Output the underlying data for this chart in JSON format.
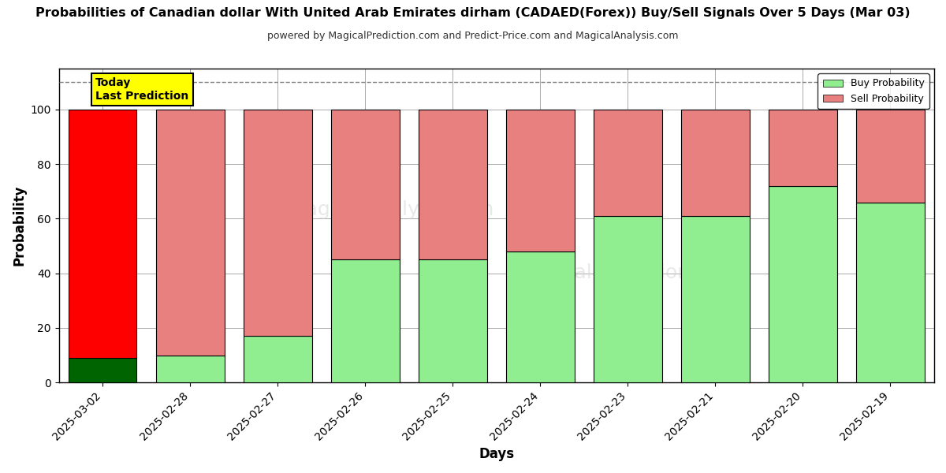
{
  "title": "Probabilities of Canadian dollar With United Arab Emirates dirham (CADAED(Forex)) Buy/Sell Signals Over 5 Days (Mar 03)",
  "subtitle": "powered by MagicalPrediction.com and Predict-Price.com and MagicalAnalysis.com",
  "xlabel": "Days",
  "ylabel": "Probability",
  "categories": [
    "2025-03-02",
    "2025-02-28",
    "2025-02-27",
    "2025-02-26",
    "2025-02-25",
    "2025-02-24",
    "2025-02-23",
    "2025-02-21",
    "2025-02-20",
    "2025-02-19"
  ],
  "buy_values": [
    9,
    10,
    17,
    45,
    45,
    48,
    61,
    61,
    72,
    66
  ],
  "sell_values": [
    91,
    90,
    83,
    55,
    55,
    52,
    39,
    39,
    28,
    34
  ],
  "buy_color_normal": "#90EE90",
  "sell_color_normal": "#E88080",
  "buy_color_today": "#006400",
  "sell_color_today": "#FF0000",
  "legend_buy_color": "#90EE90",
  "legend_sell_color": "#E88080",
  "today_box_color": "#FFFF00",
  "today_box_text": "Today\nLast Prediction",
  "ylim": [
    0,
    115
  ],
  "dashed_line_y": 110,
  "figsize": [
    12,
    6
  ],
  "dpi": 100,
  "background_color": "#ffffff",
  "grid_color": "#aaaaaa"
}
